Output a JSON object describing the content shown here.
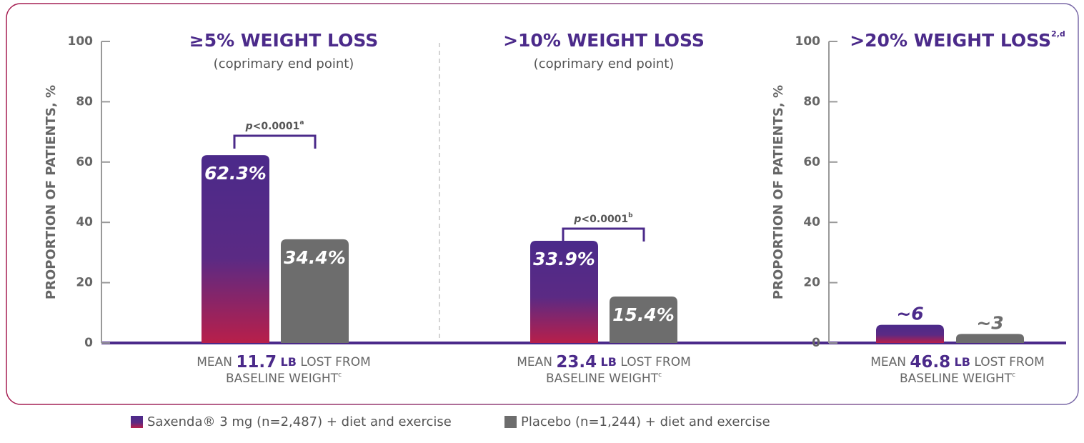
{
  "chart_data": [
    {
      "type": "bar",
      "title": "≥5% WEIGHT LOSS",
      "subtitle": "(coprimary end point)",
      "ylabel": "PROPORTION OF PATIENTS, %",
      "ylim": [
        0,
        100
      ],
      "yticks": [
        0,
        20,
        40,
        60,
        80,
        100
      ],
      "series": [
        {
          "name": "Saxenda® 3 mg (n=2,487) + diet and exercise",
          "color": "#4b2a8a",
          "values": [
            62.3
          ],
          "value_labels": [
            "62.3%"
          ]
        },
        {
          "name": "Placebo (n=1,244) + diet and exercise",
          "color": "#6d6d6d",
          "values": [
            34.4
          ],
          "value_labels": [
            "34.4%"
          ]
        }
      ],
      "p_value": {
        "italic": "p",
        "text": "<0.0001",
        "sup": "a"
      },
      "note": {
        "prefix": "MEAN",
        "value": "11.7",
        "unit": "LB",
        "suffix": "LOST FROM",
        "line2": "BASELINE WEIGHT",
        "sup": "c"
      }
    },
    {
      "type": "bar",
      "title": ">10% WEIGHT LOSS",
      "subtitle": "(coprimary end point)",
      "ylim": [
        0,
        100
      ],
      "series": [
        {
          "name": "Saxenda® 3 mg (n=2,487) + diet and exercise",
          "color": "#4b2a8a",
          "values": [
            33.9
          ],
          "value_labels": [
            "33.9%"
          ]
        },
        {
          "name": "Placebo (n=1,244) + diet and exercise",
          "color": "#6d6d6d",
          "values": [
            15.4
          ],
          "value_labels": [
            "15.4%"
          ]
        }
      ],
      "p_value": {
        "italic": "p",
        "text": "<0.0001",
        "sup": "b"
      },
      "note": {
        "prefix": "MEAN",
        "value": "23.4",
        "unit": "LB",
        "suffix": "LOST FROM",
        "line2": "BASELINE WEIGHT",
        "sup": "c"
      }
    },
    {
      "type": "bar",
      "title": ">20% WEIGHT LOSS",
      "title_sup": "2,d",
      "ylabel": "PROPORTION OF PATIENTS, %",
      "ylim": [
        0,
        100
      ],
      "yticks": [
        0,
        20,
        40,
        60,
        80,
        100
      ],
      "series": [
        {
          "name": "Saxenda® 3 mg (n=2,487) + diet and exercise",
          "color": "#4b2a8a",
          "values": [
            6
          ],
          "value_labels": [
            "~6"
          ]
        },
        {
          "name": "Placebo (n=1,244) + diet and exercise",
          "color": "#6d6d6d",
          "values": [
            3
          ],
          "value_labels": [
            "~3"
          ]
        }
      ],
      "note": {
        "prefix": "MEAN",
        "value": "46.8",
        "unit": "LB",
        "suffix": "LOST FROM",
        "line2": "BASELINE WEIGHT",
        "sup": "c"
      }
    }
  ]
}
